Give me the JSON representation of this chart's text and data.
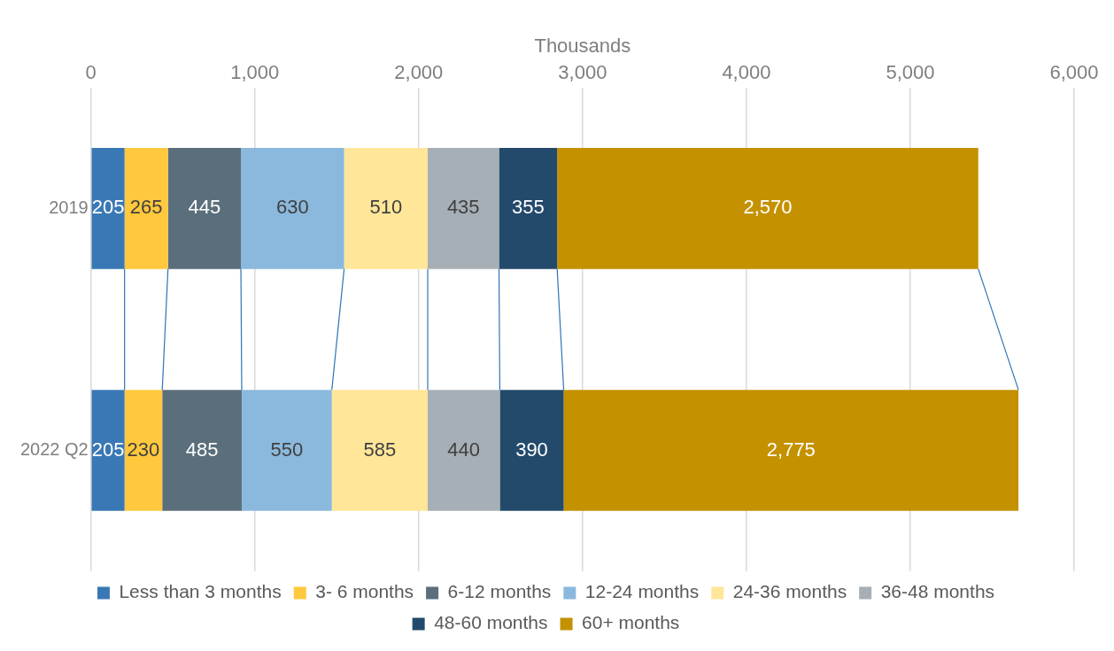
{
  "chart_data": {
    "type": "bar",
    "orientation": "horizontal",
    "stacked": true,
    "xlabel": "Thousands",
    "categories": [
      "2019",
      "2022 Q2"
    ],
    "xlim": [
      0,
      6000
    ],
    "xticks": [
      {
        "value": 0,
        "label": "0"
      },
      {
        "value": 1000,
        "label": "1,000"
      },
      {
        "value": 2000,
        "label": "2,000"
      },
      {
        "value": 3000,
        "label": "3,000"
      },
      {
        "value": 4000,
        "label": "4,000"
      },
      {
        "value": 5000,
        "label": "5,000"
      },
      {
        "value": 6000,
        "label": "6,000"
      }
    ],
    "grid": "x",
    "legend": "bottom",
    "data_labels": true,
    "series": [
      {
        "name": "Less than 3 months",
        "color": "#3a78b5",
        "values": [
          205,
          205
        ],
        "value_labels": [
          "205",
          "205"
        ]
      },
      {
        "name": "3- 6 months",
        "color": "#ffc83d",
        "values": [
          265,
          230
        ],
        "value_labels": [
          "265",
          "230"
        ]
      },
      {
        "name": "6-12 months",
        "color": "#5b6e7b",
        "values": [
          445,
          485
        ],
        "value_labels": [
          "445",
          "485"
        ]
      },
      {
        "name": "12-24 months",
        "color": "#8bb9dd",
        "values": [
          630,
          550
        ],
        "value_labels": [
          "630",
          "550"
        ]
      },
      {
        "name": "24-36 months",
        "color": "#ffe699",
        "values": [
          510,
          585
        ],
        "value_labels": [
          "510",
          "585"
        ]
      },
      {
        "name": "36-48 months",
        "color": "#a6afb5",
        "values": [
          435,
          440
        ],
        "value_labels": [
          "435",
          "440"
        ]
      },
      {
        "name": "48-60 months",
        "color": "#234a6b",
        "values": [
          355,
          390
        ],
        "value_labels": [
          "355",
          "390"
        ]
      },
      {
        "name": "60+ months",
        "color": "#c49100",
        "values": [
          2570,
          2775
        ],
        "value_labels": [
          "2,570",
          "2,775"
        ]
      }
    ]
  }
}
